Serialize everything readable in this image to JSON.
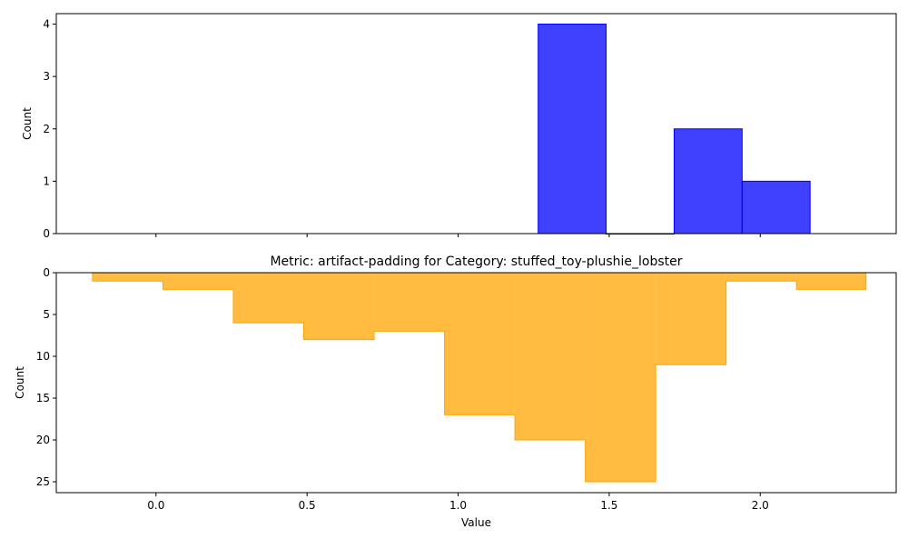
{
  "chart_data": [
    {
      "type": "bar",
      "title": "",
      "xlabel": "",
      "ylabel": "Count",
      "ylim": [
        0,
        4.2
      ],
      "yticks": [
        0,
        1,
        2,
        3,
        4
      ],
      "xlim": [
        -0.33,
        2.45
      ],
      "xticks": [
        0.0,
        0.5,
        1.0,
        1.5,
        2.0
      ],
      "show_x_tick_labels": false,
      "grid": false,
      "style": {
        "fill": "#0000ff",
        "alpha": 0.75,
        "edge": "#0000ff"
      },
      "bins": [
        {
          "x0": 1.265,
          "x1": 1.49,
          "count": 4
        },
        {
          "x0": 1.49,
          "x1": 1.715,
          "count": 0
        },
        {
          "x0": 1.715,
          "x1": 1.94,
          "count": 2
        },
        {
          "x0": 1.94,
          "x1": 2.165,
          "count": 1
        }
      ]
    },
    {
      "type": "area",
      "title": "Metric: artifact-padding for Category: stuffed_toy-plushie_lobster",
      "xlabel": "Value",
      "ylabel": "Count",
      "ylim": [
        0,
        26.3
      ],
      "y_inverted": true,
      "yticks": [
        0,
        5,
        10,
        15,
        20,
        25
      ],
      "xlim": [
        -0.33,
        2.45
      ],
      "xticks": [
        0.0,
        0.5,
        1.0,
        1.5,
        2.0
      ],
      "x_tick_labels": [
        "0.0",
        "0.5",
        "1.0",
        "1.5",
        "2.0"
      ],
      "grid": false,
      "style": {
        "fill": "#ffa500",
        "alpha": 0.75,
        "edge": "#ffa500"
      },
      "bins": [
        {
          "x0": -0.21,
          "x1": 0.023,
          "count": 1
        },
        {
          "x0": 0.023,
          "x1": 0.256,
          "count": 2
        },
        {
          "x0": 0.256,
          "x1": 0.489,
          "count": 6
        },
        {
          "x0": 0.489,
          "x1": 0.722,
          "count": 8
        },
        {
          "x0": 0.722,
          "x1": 0.955,
          "count": 7
        },
        {
          "x0": 0.955,
          "x1": 1.188,
          "count": 17
        },
        {
          "x0": 1.188,
          "x1": 1.421,
          "count": 20
        },
        {
          "x0": 1.421,
          "x1": 1.654,
          "count": 25
        },
        {
          "x0": 1.654,
          "x1": 1.887,
          "count": 11
        },
        {
          "x0": 1.887,
          "x1": 2.12,
          "count": 1
        },
        {
          "x0": 2.12,
          "x1": 2.35,
          "count": 2
        }
      ]
    }
  ]
}
